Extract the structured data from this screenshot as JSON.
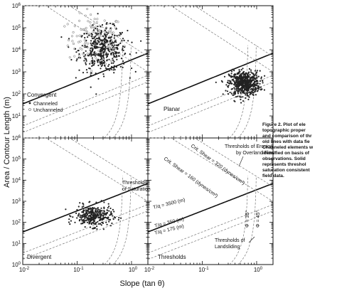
{
  "chart_data": [
    {
      "panel": "Convergent",
      "type": "scatter",
      "xlabel": "Slope (tan θ)",
      "ylabel": "Area / Contour Length (m)",
      "xscale": "log",
      "yscale": "log",
      "xlim": [
        0.01,
        2
      ],
      "ylim": [
        1,
        1000000
      ],
      "xticks": [
        "10^-2",
        "10^-1",
        "10^0"
      ],
      "yticks": [
        "10^0",
        "10^1",
        "10^2",
        "10^3",
        "10^4",
        "10^5",
        "10^6"
      ],
      "legend": {
        "title": "Convergent",
        "items": [
          "Channeled",
          "Unchanneled"
        ],
        "location": "bottom-left"
      },
      "series": [
        {
          "name": "Channeled",
          "marker": "filled",
          "cluster": {
            "x_center": 0.3,
            "y_center": 10000,
            "x_spread": 0.22,
            "y_spread": 0.5,
            "n": 420
          }
        },
        {
          "name": "Unchanneled",
          "marker": "open",
          "cluster": {
            "x_center": 0.22,
            "y_center": 30000,
            "x_spread": 0.25,
            "y_spread": 0.55,
            "n": 140
          }
        }
      ]
    },
    {
      "panel": "Planar",
      "type": "scatter",
      "xscale": "log",
      "yscale": "log",
      "xlim": [
        0.01,
        2
      ],
      "ylim": [
        1,
        1000000
      ],
      "xticks": [
        "10^-2",
        "10^-1",
        "10^0"
      ],
      "label": "Planar",
      "series": [
        {
          "cluster": {
            "x_center": 0.6,
            "y_center": 300,
            "x_spread": 0.14,
            "y_spread": 0.28,
            "n": 600
          }
        }
      ]
    },
    {
      "panel": "Divergent",
      "type": "scatter",
      "xscale": "log",
      "yscale": "log",
      "xlim": [
        0.01,
        2
      ],
      "ylim": [
        1,
        1000000
      ],
      "xticks": [
        "10^-2",
        "10^-1",
        "10^0"
      ],
      "yticks": [
        "10^0",
        "10^1",
        "10^2",
        "10^3",
        "10^4",
        "10^5",
        "10^6"
      ],
      "label": "Divergent",
      "series": [
        {
          "cluster": {
            "x_center": 0.2,
            "y_center": 200,
            "x_spread": 0.17,
            "y_spread": 0.25,
            "n": 320
          }
        }
      ]
    },
    {
      "panel": "Thresholds",
      "type": "line",
      "xscale": "log",
      "yscale": "log",
      "xlim": [
        0.01,
        2
      ],
      "ylim": [
        1,
        1000000
      ],
      "xticks": [
        "10^-2",
        "10^-1",
        "10^0"
      ],
      "label": "Thresholds",
      "annotations": {
        "erosion": [
          "Thresholds of Erosion",
          "by Overland Flow"
        ],
        "saturation": [
          "Thresholds",
          "of Saturation"
        ],
        "landsliding": [
          "Thresholds of",
          "Landsliding"
        ],
        "shear_320": "Crit. Shear = 320 (dynes/cm²)",
        "shear_160": "Crit. Shear = 160 (dynes/cm²)",
        "tq_3500": "T/q = 3500 (m)",
        "tq_350": "T/q = 350 (m)",
        "tq_175": "T/q = 175 (m)",
        "phi_35": "Φ = 35°",
        "phi_45": "Φ = 45°"
      }
    }
  ],
  "axes": {
    "ylabel": "Area / Contour Length (m)",
    "xlabel": "Slope (tan θ)"
  },
  "caption": {
    "lines": [
      "Figure 2. Plot of ele",
      "topographic proper",
      "and comparison of thr",
      "old lines with data fie",
      "Channeled elements w",
      "identified on basis of",
      "observations. Solid",
      "represents threshol",
      "saturation consistent",
      "field data."
    ]
  }
}
